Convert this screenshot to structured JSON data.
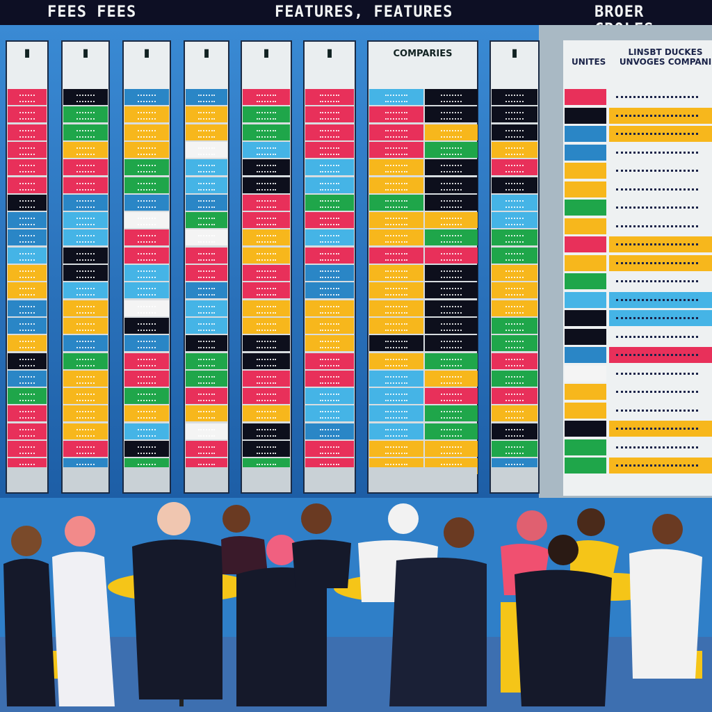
{
  "banner": {
    "left": "FEES  FEES",
    "center": "FEATURES, FEATURES",
    "right": "BROER CROLES"
  },
  "palette": {
    "R": "#e8305a",
    "K": "#0d0f1c",
    "G": "#1fa64a",
    "Y": "#f7b71c",
    "B": "#2a86c6",
    "L": "#45b4e6",
    "W": "#f4f4f4"
  },
  "table": {
    "columns": [
      {
        "icon": "e-icon",
        "cells": "RRRRRRKBBLYYBBYKBGRRRR"
      },
      {
        "icon": "bar-icon",
        "cells": "KGGYRRBLLKKLYYBGYYYYRB"
      },
      {
        "icon": "check-icon",
        "cells": "BYYYGGBWRRLLWKBRRGYLKG"
      },
      {
        "icon": "badge-icon",
        "cells": "BYYWLLBGWRRBLLKGGRYWRR"
      },
      {
        "icon": "pen-icon",
        "cells": "RGGLKKRRYYRRYYKKRRYKKG"
      },
      {
        "icon": "x-icon",
        "cells": "RRRRLLGRLRBBYYYRRLLBRR"
      },
      {
        "header": "COMPARIES",
        "cells": "LRRRYYGYYRYYYYKYLLLLYY",
        "cells2": "KKYGKKKYGRKKKKKGYRGGYY"
      },
      {
        "icon": "leaf-icon",
        "cells": "KKKYRKLLGGYYYGGRGRYKGB"
      }
    ]
  },
  "side_table": {
    "units_header": "UNITES",
    "title": "LINSBT DUCKES UNVOGES COMPANI",
    "units": "RKBBYYGYRYGLKKBWYYKGG",
    "rows": "WYYWWWWWYYWLLWRWWWYWY"
  }
}
